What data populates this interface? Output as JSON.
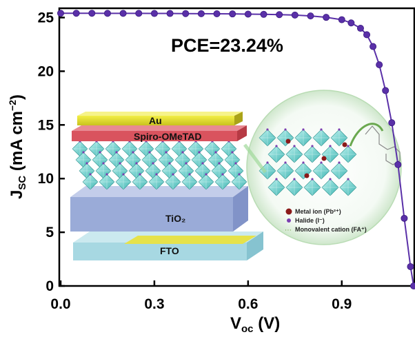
{
  "chart_data": {
    "type": "line",
    "annotation": "PCE=23.24%",
    "xlabel": {
      "main": "V",
      "sub": "oc",
      "unit": " (V)"
    },
    "ylabel": {
      "main": "J",
      "sub": "SC",
      "unit": " (mA cm",
      "sup": "−2",
      "close": ")"
    },
    "xlim": [
      0.0,
      1.13
    ],
    "ylim": [
      0,
      25.8
    ],
    "xticks": [
      0.0,
      0.3,
      0.6,
      0.9
    ],
    "xtick_labels": [
      "0.0",
      "0.3",
      "0.6",
      "0.9"
    ],
    "yticks": [
      0,
      5,
      10,
      15,
      20,
      25
    ],
    "ytick_labels": [
      "0",
      "5",
      "10",
      "15",
      "20",
      "25"
    ],
    "grid": false,
    "series": [
      {
        "color": "#5a30a8",
        "x": [
          0.0,
          0.05,
          0.1,
          0.15,
          0.2,
          0.25,
          0.3,
          0.35,
          0.4,
          0.45,
          0.5,
          0.55,
          0.6,
          0.65,
          0.7,
          0.75,
          0.8,
          0.85,
          0.9,
          0.93,
          0.96,
          0.98,
          1.0,
          1.02,
          1.04,
          1.06,
          1.08,
          1.1,
          1.12,
          1.13
        ],
        "y": [
          25.4,
          25.4,
          25.4,
          25.39,
          25.39,
          25.39,
          25.38,
          25.38,
          25.37,
          25.36,
          25.35,
          25.34,
          25.32,
          25.3,
          25.27,
          25.23,
          25.15,
          25.02,
          24.8,
          24.5,
          24.0,
          23.4,
          22.3,
          20.6,
          18.2,
          15.2,
          11.3,
          6.3,
          1.8,
          0.0
        ]
      }
    ]
  },
  "inset": {
    "layers": [
      "Au",
      "Spiro-OMeTAD",
      "TiO₂",
      "FTO"
    ],
    "legend": [
      {
        "text": "Metal ion (Pb²⁺)",
        "color": "#8b1a1a"
      },
      {
        "text": "Halide (I⁻)",
        "color": "#7a3fb0"
      },
      {
        "text": "Monovalent cation (FA⁺)",
        "color": "#7aa650"
      }
    ]
  }
}
